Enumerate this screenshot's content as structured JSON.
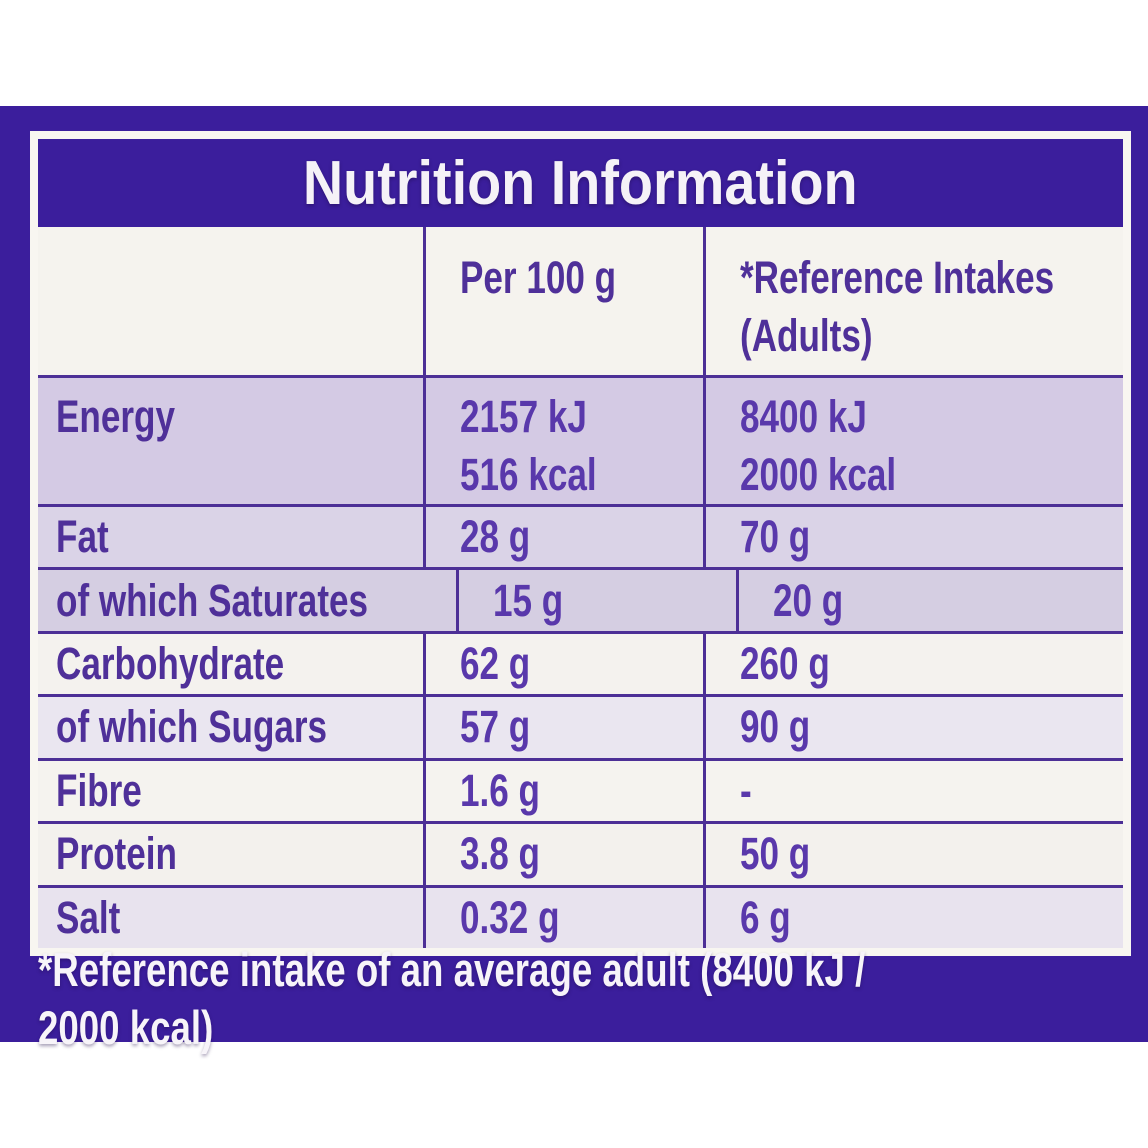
{
  "title": "Nutrition Information",
  "columns": {
    "col1": "",
    "per100": "Per 100 g",
    "reference": [
      "*Reference Intakes",
      "(Adults)"
    ]
  },
  "rows": [
    {
      "label": "Energy",
      "per100": [
        "2157 kJ",
        "516 kcal"
      ],
      "reference": [
        "8400 kJ",
        "2000 kcal"
      ],
      "shade": "#d4cae4"
    },
    {
      "label": "Fat",
      "per100": [
        "28 g"
      ],
      "reference": [
        "70 g"
      ],
      "shade": "#dad3e7"
    },
    {
      "label": "of which Saturates",
      "per100": [
        "15 g"
      ],
      "reference": [
        "20 g"
      ],
      "shade": "#d5cee2"
    },
    {
      "label": "Carbohydrate",
      "per100": [
        "62 g"
      ],
      "reference": [
        "260 g"
      ],
      "shade": "#f4f2ee"
    },
    {
      "label": "of which Sugars",
      "per100": [
        "57 g"
      ],
      "reference": [
        "90 g"
      ],
      "shade": "#eae6f0"
    },
    {
      "label": "Fibre",
      "per100": [
        "1.6 g"
      ],
      "reference": [
        "-"
      ],
      "shade": "#f5f3ef"
    },
    {
      "label": "Protein",
      "per100": [
        "3.8 g"
      ],
      "reference": [
        "50 g"
      ],
      "shade": "#f3f1ed"
    },
    {
      "label": "Salt",
      "per100": [
        "0.32 g"
      ],
      "reference": [
        "6 g"
      ],
      "shade": "#e8e3ee"
    }
  ],
  "footnote": "*Reference intake of an average adult (8400 kJ / 2000 kcal)",
  "colors": {
    "purple": "#3b1e9c",
    "frame_white": "#f8f6f1",
    "header_bg": "#f5f3ee",
    "rule": "#4c2f96",
    "label_text": "#4f3099",
    "value_text": "#5938ab",
    "title_text": "#f5f2f7",
    "footnote_text": "#f7f4f9"
  },
  "chart_data": {
    "type": "table",
    "title": "Nutrition Information",
    "columns": [
      "",
      "Per 100 g",
      "*Reference Intakes (Adults)"
    ],
    "rows": [
      [
        "Energy",
        "2157 kJ / 516 kcal",
        "8400 kJ / 2000 kcal"
      ],
      [
        "Fat",
        "28 g",
        "70 g"
      ],
      [
        "of which Saturates",
        "15 g",
        "20 g"
      ],
      [
        "Carbohydrate",
        "62 g",
        "260 g"
      ],
      [
        "of which Sugars",
        "57 g",
        "90 g"
      ],
      [
        "Fibre",
        "1.6 g",
        "-"
      ],
      [
        "Protein",
        "3.8 g",
        "50 g"
      ],
      [
        "Salt",
        "0.32 g",
        "6 g"
      ]
    ],
    "footnote": "*Reference intake of an average adult (8400 kJ / 2000 kcal)"
  }
}
